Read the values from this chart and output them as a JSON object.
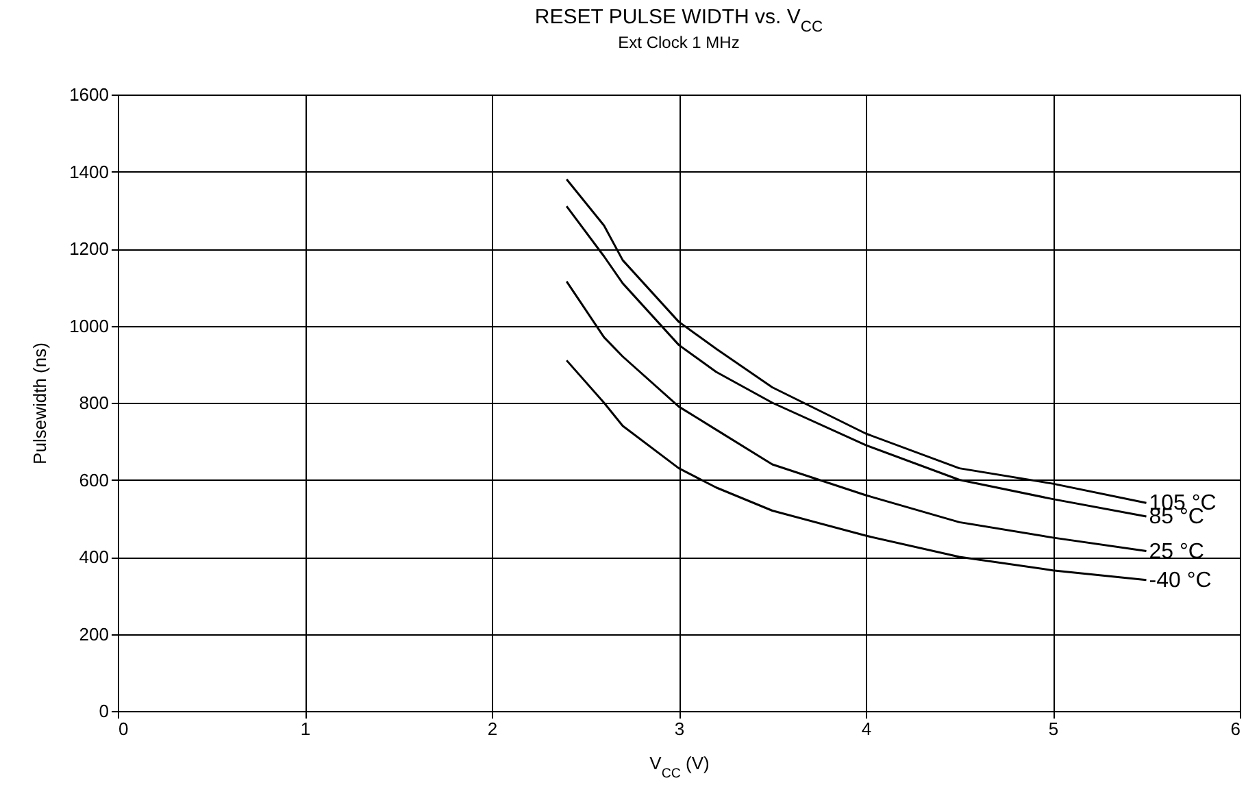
{
  "chart_data": {
    "type": "line",
    "title": "RESET PULSE WIDTH vs. V$_{CC}$",
    "subtitle": "Ext Clock 1 MHz",
    "xlabel": "V$_{CC}$ (V)",
    "ylabel": "Pulsewidth (ns)",
    "xlim": [
      0,
      6
    ],
    "xticks": [
      0,
      1,
      2,
      3,
      4,
      5,
      6
    ],
    "ylim": [
      0,
      1600
    ],
    "yticks": [
      0,
      200,
      400,
      600,
      800,
      1000,
      1200,
      1400,
      1600
    ],
    "grid": true,
    "legend": false,
    "marker": "none",
    "line_style": "solid",
    "x": [
      2.4,
      2.6,
      2.7,
      3.0,
      3.2,
      3.5,
      4.0,
      4.5,
      5.0,
      5.5
    ],
    "series": [
      {
        "name": "105 °C",
        "color": "#000000",
        "values": [
          1380,
          1260,
          1170,
          1010,
          940,
          840,
          720,
          630,
          590,
          540
        ]
      },
      {
        "name": "85 °C",
        "color": "#000000",
        "values": [
          1310,
          1180,
          1110,
          950,
          880,
          800,
          690,
          600,
          550,
          505
        ]
      },
      {
        "name": "25 °C",
        "color": "#000000",
        "values": [
          1115,
          970,
          920,
          790,
          730,
          640,
          560,
          490,
          450,
          415
        ]
      },
      {
        "name": "-40 °C",
        "color": "#000000",
        "values": [
          910,
          800,
          740,
          630,
          580,
          520,
          455,
          400,
          365,
          340
        ]
      }
    ]
  }
}
